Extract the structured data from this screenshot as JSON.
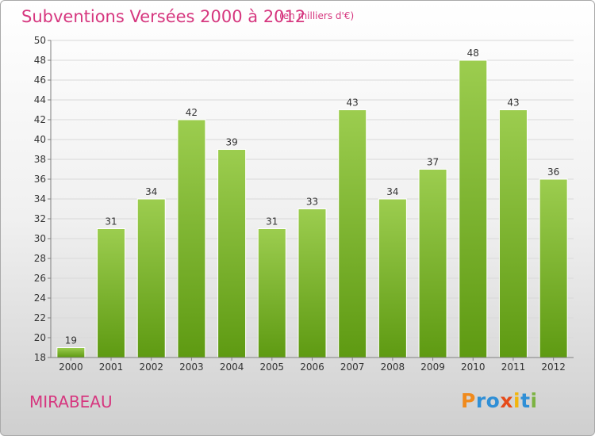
{
  "header": {
    "title": "Subventions Versées 2000 à 2012",
    "unit": "(en milliers d'€)"
  },
  "footer": {
    "commune": "MIRABEAU",
    "logo_letters": [
      "P",
      "r",
      "o",
      "x",
      "i",
      "t",
      "i"
    ],
    "logo_colors": [
      "#f08a1c",
      "#2f8fd6",
      "#2f8fd6",
      "#e64a19",
      "#f2b50c",
      "#2f8fd6",
      "#7cb342"
    ]
  },
  "colors": {
    "title": "#d6377f",
    "bar_light": "#9ccd4f",
    "bar_dark": "#5e9a12",
    "grid": "#d9d9d9",
    "axis": "#7f7f7f"
  },
  "chart_data": {
    "type": "bar",
    "title": "Subventions Versées 2000 à 2012",
    "categories": [
      "2000",
      "2001",
      "2002",
      "2003",
      "2004",
      "2005",
      "2006",
      "2007",
      "2008",
      "2009",
      "2010",
      "2011",
      "2012"
    ],
    "values": [
      19,
      31,
      34,
      42,
      39,
      31,
      33,
      43,
      34,
      37,
      48,
      43,
      36
    ],
    "xlabel": "",
    "ylabel": "",
    "ylim": [
      18,
      50
    ],
    "yticks": [
      18,
      20,
      22,
      24,
      26,
      28,
      30,
      32,
      34,
      36,
      38,
      40,
      42,
      44,
      46,
      48,
      50
    ],
    "grid": true,
    "data_labels": true
  }
}
